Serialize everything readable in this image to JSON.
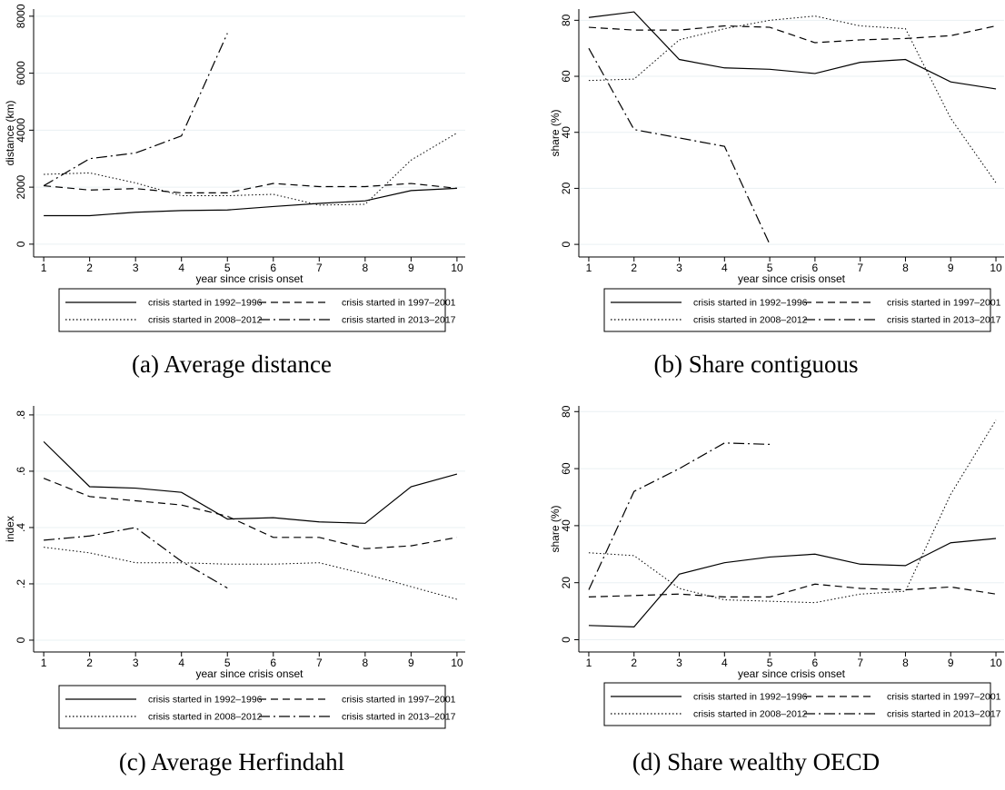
{
  "chart_data": [
    {
      "type": "line",
      "caption": "(a) Average distance",
      "ylabel": "distance (km)",
      "xlabel": "year since crisis onset",
      "x": [
        1,
        2,
        3,
        4,
        5,
        6,
        7,
        8,
        9,
        10
      ],
      "xlim": [
        0.78,
        10.18
      ],
      "xticks": [
        1,
        2,
        3,
        4,
        5,
        6,
        7,
        8,
        9,
        10
      ],
      "ylim": [
        -450,
        8250
      ],
      "yticks": [
        0,
        2000,
        4000,
        6000,
        8000
      ],
      "grid": true,
      "legend": "bottom",
      "series": [
        {
          "name": "crisis started in 1992–1996",
          "color": "#000000",
          "dash": "solid",
          "values": [
            1000,
            1000,
            1120,
            1180,
            1200,
            1320,
            1430,
            1520,
            1880,
            1960
          ]
        },
        {
          "name": "crisis started in 1997–2001",
          "color": "#000000",
          "dash": "dashed",
          "values": [
            2050,
            1900,
            1950,
            1800,
            1800,
            2130,
            2020,
            2020,
            2130,
            1960
          ]
        },
        {
          "name": "crisis started in 2008–2012",
          "color": "#000000",
          "dash": "dotted",
          "values": [
            2450,
            2500,
            2150,
            1700,
            1700,
            1750,
            1370,
            1400,
            2950,
            3900
          ]
        },
        {
          "name": "crisis started in 2013–2017",
          "color": "#000000",
          "dash": "dashdot",
          "values": [
            2050,
            3000,
            3200,
            3800,
            7400,
            null,
            null,
            null,
            null,
            null
          ]
        }
      ]
    },
    {
      "type": "line",
      "caption": "(b) Share contiguous",
      "ylabel": "share (%)",
      "xlabel": "year since crisis onset",
      "x": [
        1,
        2,
        3,
        4,
        5,
        6,
        7,
        8,
        9,
        10
      ],
      "xlim": [
        0.78,
        10.18
      ],
      "xticks": [
        1,
        2,
        3,
        4,
        5,
        6,
        7,
        8,
        9,
        10
      ],
      "ylim": [
        -4.5,
        84
      ],
      "yticks": [
        0,
        20,
        40,
        60,
        80
      ],
      "grid": true,
      "legend": "bottom",
      "series": [
        {
          "name": "crisis started in 1992–1996",
          "color": "#000000",
          "dash": "solid",
          "values": [
            81,
            83,
            66,
            63,
            62.5,
            61,
            65,
            66,
            58,
            55.5
          ]
        },
        {
          "name": "crisis started in 1997–2001",
          "color": "#000000",
          "dash": "dashed",
          "values": [
            77.5,
            76.5,
            76.5,
            78,
            77.5,
            72,
            73,
            73.5,
            74.5,
            78
          ]
        },
        {
          "name": "crisis started in 2008–2012",
          "color": "#000000",
          "dash": "dotted",
          "values": [
            58.5,
            59,
            73,
            77,
            80,
            81.5,
            78,
            77,
            45,
            22
          ]
        },
        {
          "name": "crisis started in 2013–2017",
          "color": "#000000",
          "dash": "dashdot",
          "values": [
            70,
            41,
            38,
            35,
            0,
            null,
            null,
            null,
            null,
            null
          ]
        }
      ]
    },
    {
      "type": "line",
      "caption": "(c) Average Herfindahl",
      "ylabel": "index",
      "xlabel": "year since crisis onset",
      "x": [
        1,
        2,
        3,
        4,
        5,
        6,
        7,
        8,
        9,
        10
      ],
      "xlim": [
        0.78,
        10.18
      ],
      "xticks": [
        1,
        2,
        3,
        4,
        5,
        6,
        7,
        8,
        9,
        10
      ],
      "ylim": [
        -0.042,
        0.832
      ],
      "yticks": [
        0,
        {
          "value": 0.2,
          "label": ".2"
        },
        {
          "value": 0.4,
          "label": ".4"
        },
        {
          "value": 0.6,
          "label": ".6"
        },
        {
          "value": 0.8,
          "label": ".8"
        }
      ],
      "grid": true,
      "legend": "bottom",
      "series": [
        {
          "name": "crisis started in 1992–1996",
          "color": "#000000",
          "dash": "solid",
          "values": [
            0.705,
            0.545,
            0.54,
            0.525,
            0.43,
            0.435,
            0.42,
            0.415,
            0.545,
            0.59
          ]
        },
        {
          "name": "crisis started in 1997–2001",
          "color": "#000000",
          "dash": "dashed",
          "values": [
            0.575,
            0.51,
            0.495,
            0.48,
            0.44,
            0.365,
            0.365,
            0.325,
            0.335,
            0.365
          ]
        },
        {
          "name": "crisis started in 2008–2012",
          "color": "#000000",
          "dash": "dotted",
          "values": [
            0.33,
            0.31,
            0.275,
            0.275,
            0.27,
            0.27,
            0.275,
            0.235,
            0.19,
            0.145
          ]
        },
        {
          "name": "crisis started in 2013–2017",
          "color": "#000000",
          "dash": "dashdot",
          "values": [
            0.355,
            0.37,
            0.4,
            0.28,
            0.185,
            null,
            null,
            null,
            null,
            null
          ]
        }
      ]
    },
    {
      "type": "line",
      "caption": "(d) Share wealthy OECD",
      "ylabel": "share (%)",
      "xlabel": "year since crisis onset",
      "x": [
        1,
        2,
        3,
        4,
        5,
        6,
        7,
        8,
        9,
        10
      ],
      "xlim": [
        0.78,
        10.18
      ],
      "xticks": [
        1,
        2,
        3,
        4,
        5,
        6,
        7,
        8,
        9,
        10
      ],
      "ylim": [
        -4.3,
        82
      ],
      "yticks": [
        0,
        20,
        40,
        60,
        80
      ],
      "grid": true,
      "legend": "bottom",
      "series": [
        {
          "name": "crisis started in 1992–1996",
          "color": "#000000",
          "dash": "solid",
          "values": [
            5,
            4.5,
            23,
            27,
            29,
            30,
            26.5,
            26,
            34,
            35.5
          ]
        },
        {
          "name": "crisis started in 1997–2001",
          "color": "#000000",
          "dash": "dashed",
          "values": [
            15,
            15.5,
            16,
            15,
            15,
            19.5,
            18,
            17.5,
            18.5,
            16
          ]
        },
        {
          "name": "crisis started in 2008–2012",
          "color": "#000000",
          "dash": "dotted",
          "values": [
            30.5,
            29.5,
            18,
            14,
            13.5,
            13,
            16,
            17,
            51,
            77
          ]
        },
        {
          "name": "crisis started in 2013–2017",
          "color": "#000000",
          "dash": "dashdot",
          "values": [
            17.5,
            52,
            60,
            69,
            68.5,
            null,
            null,
            null,
            null,
            null
          ]
        }
      ]
    }
  ]
}
